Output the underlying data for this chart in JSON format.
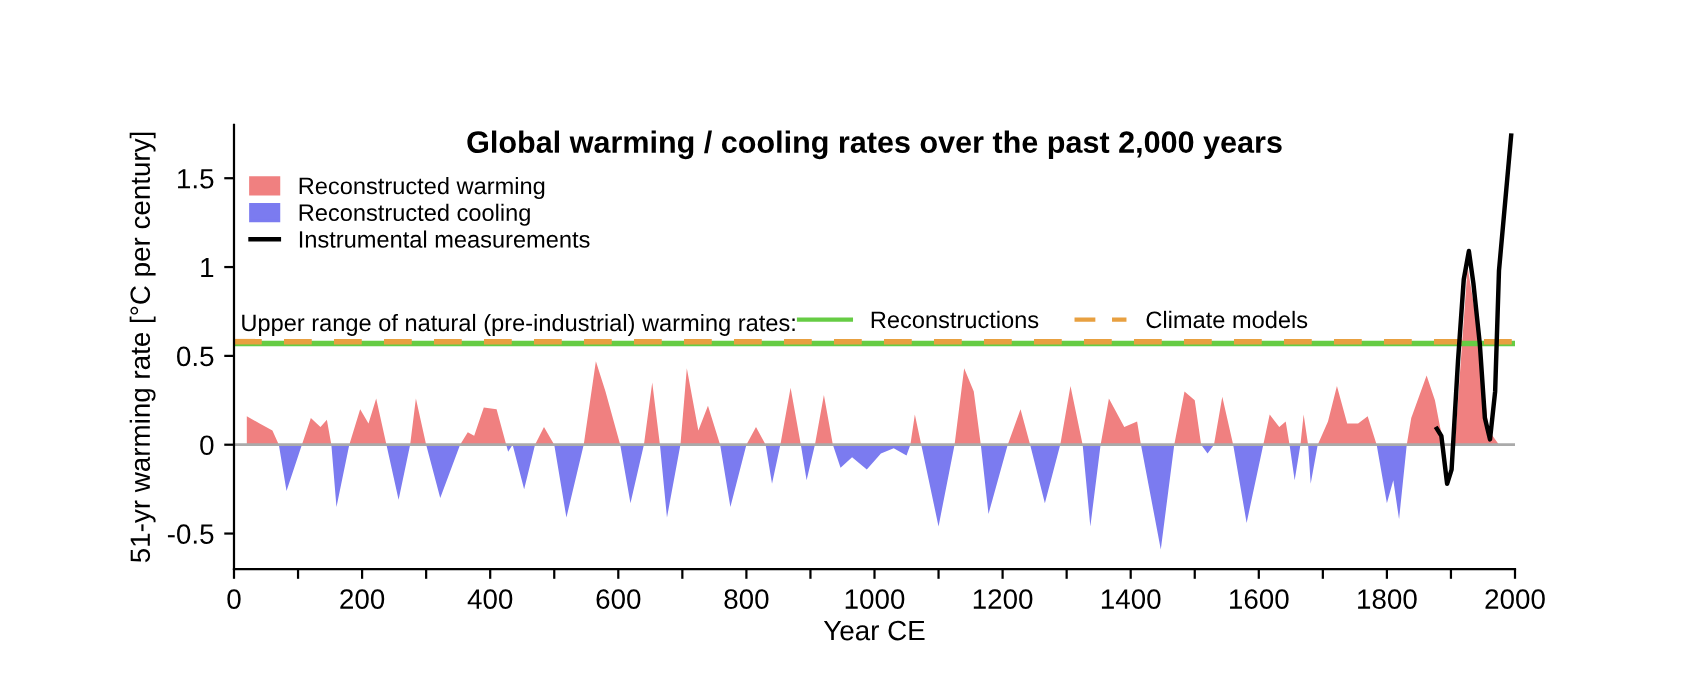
{
  "chart_data": {
    "type": "area",
    "title": "Global warming / cooling rates over the past 2,000 years",
    "xlabel": "Year CE",
    "ylabel": "51-yr warming rate [°C per century]",
    "x": [
      20,
      40,
      60,
      70,
      82,
      106,
      120,
      135,
      145,
      152,
      160,
      180,
      197,
      210,
      222,
      238,
      257,
      275,
      284,
      300,
      322,
      353,
      365,
      375,
      390,
      410,
      425,
      428,
      435,
      453,
      470,
      484,
      500,
      519,
      546,
      565,
      580,
      603,
      619,
      640,
      653,
      665,
      676,
      697,
      707,
      725,
      740,
      759,
      775,
      800,
      815,
      830,
      840,
      853,
      869,
      885,
      894,
      907,
      921,
      935,
      947,
      965,
      988,
      1010,
      1030,
      1050,
      1056,
      1063,
      1073,
      1100,
      1125,
      1140,
      1155,
      1166,
      1178,
      1208,
      1228,
      1243,
      1266,
      1290,
      1306,
      1325,
      1337,
      1353,
      1366,
      1390,
      1410,
      1416,
      1447,
      1468,
      1484,
      1500,
      1510,
      1520,
      1530,
      1543,
      1560,
      1581,
      1607,
      1617,
      1632,
      1642,
      1648,
      1656,
      1665,
      1670,
      1677,
      1681,
      1692,
      1708,
      1722,
      1738,
      1755,
      1770,
      1784,
      1800,
      1810,
      1819,
      1831,
      1838,
      1862,
      1875,
      1883,
      1890,
      1906,
      1926,
      1942,
      1958,
      1965,
      1975
    ],
    "series": [
      {
        "name": "Reconstructed warming",
        "color": "#f08080",
        "values": [
          0.16,
          0.12,
          0.08,
          0,
          0,
          0,
          0.15,
          0.1,
          0.14,
          0,
          0,
          0,
          0.2,
          0.12,
          0.26,
          0,
          0,
          0,
          0.26,
          0,
          0,
          0,
          0.07,
          0.05,
          0.21,
          0.2,
          0,
          0,
          0,
          0,
          0,
          0.1,
          0,
          0,
          0,
          0.47,
          0.3,
          0,
          0,
          0,
          0.35,
          0,
          0,
          0,
          0.43,
          0.08,
          0.22,
          0,
          0,
          0,
          0.1,
          0,
          0,
          0,
          0.32,
          0,
          0,
          0,
          0.28,
          0,
          0,
          0,
          0,
          0,
          0,
          0,
          0,
          0.17,
          0,
          0,
          0,
          0.43,
          0.3,
          0,
          0,
          0,
          0.2,
          0,
          0,
          0,
          0.33,
          0,
          0,
          0,
          0.26,
          0.1,
          0.13,
          0,
          0,
          0,
          0.3,
          0.25,
          0,
          0,
          0,
          0.27,
          0,
          0,
          0,
          0.17,
          0.1,
          0.13,
          0,
          0,
          0,
          0.17,
          0,
          0,
          0,
          0.13,
          0.33,
          0.12,
          0.12,
          0.16,
          0,
          0,
          0,
          0,
          0,
          0.15,
          0.39,
          0.25,
          0.1,
          0,
          0,
          1.0,
          0.65,
          0.1,
          0.05,
          0
        ]
      },
      {
        "name": "Reconstructed cooling",
        "color": "#7b7bf0",
        "values": [
          0,
          0,
          0,
          0,
          -0.26,
          0,
          0,
          0,
          0,
          0,
          -0.35,
          0,
          0,
          0,
          0,
          0,
          -0.31,
          0,
          0,
          0,
          -0.3,
          0,
          0,
          0,
          0,
          0,
          0,
          -0.04,
          0,
          -0.25,
          0,
          0,
          0,
          -0.41,
          0,
          0,
          0,
          0,
          -0.33,
          0,
          0,
          0,
          -0.41,
          0,
          0,
          0,
          0,
          0,
          -0.35,
          0,
          0,
          0,
          -0.22,
          0,
          0,
          0,
          -0.2,
          0,
          0,
          0,
          -0.13,
          -0.07,
          -0.14,
          -0.05,
          -0.02,
          -0.06,
          0,
          0,
          0,
          -0.46,
          0,
          0,
          0,
          0,
          -0.39,
          0,
          0,
          0,
          -0.33,
          0,
          0,
          0,
          -0.46,
          0,
          0,
          0,
          0,
          0,
          -0.59,
          0,
          0,
          0,
          0,
          -0.05,
          0,
          0,
          0,
          -0.44,
          0,
          0,
          0,
          0,
          0,
          -0.2,
          0,
          0,
          0,
          -0.22,
          0,
          0,
          0,
          0,
          0,
          0,
          0,
          -0.33,
          -0.2,
          -0.42,
          0,
          0,
          0,
          0,
          0,
          0,
          0,
          0,
          0,
          0,
          0,
          0
        ]
      },
      {
        "name": "Instrumental measurements",
        "type": "line",
        "color": "#000000",
        "x": [
          1878,
          1885,
          1894,
          1901,
          1911,
          1920,
          1928,
          1935,
          1945,
          1953,
          1961,
          1969,
          1975,
          1994
        ],
        "values": [
          0.09,
          0.05,
          -0.22,
          -0.14,
          0.47,
          0.93,
          1.09,
          0.91,
          0.57,
          0.15,
          0.03,
          0.3,
          0.98,
          1.74
        ]
      }
    ],
    "ref_lines": [
      {
        "axis": "y",
        "value": 0,
        "color": "#aaaaaa",
        "line_style": "solid"
      },
      {
        "axis": "y",
        "value": 0.57,
        "label": "Reconstructions",
        "color": "#66cc44",
        "line_style": "solid"
      },
      {
        "axis": "y",
        "value": 0.58,
        "label": "Climate models",
        "color": "#e8a040",
        "line_style": "dashed"
      }
    ],
    "annotations": [
      "Upper range of natural (pre-industrial) warming rates:"
    ],
    "xlim": [
      0,
      2000
    ],
    "ylim": [
      -0.7,
      1.8
    ],
    "xticks": [
      0,
      {
        "value": 100,
        "label": null
      },
      200,
      {
        "value": 300,
        "label": null
      },
      400,
      {
        "value": 500,
        "label": null
      },
      600,
      {
        "value": 700,
        "label": null
      },
      800,
      {
        "value": 900,
        "label": null
      },
      1000,
      {
        "value": 1100,
        "label": null
      },
      1200,
      {
        "value": 1300,
        "label": null
      },
      1400,
      {
        "value": 1500,
        "label": null
      },
      1600,
      {
        "value": 1700,
        "label": null
      },
      1800,
      {
        "value": 1900,
        "label": null
      },
      2000
    ],
    "yticks": [
      -0.5,
      0,
      0.5,
      1,
      1.5
    ],
    "grid": false,
    "legend": "top left"
  }
}
